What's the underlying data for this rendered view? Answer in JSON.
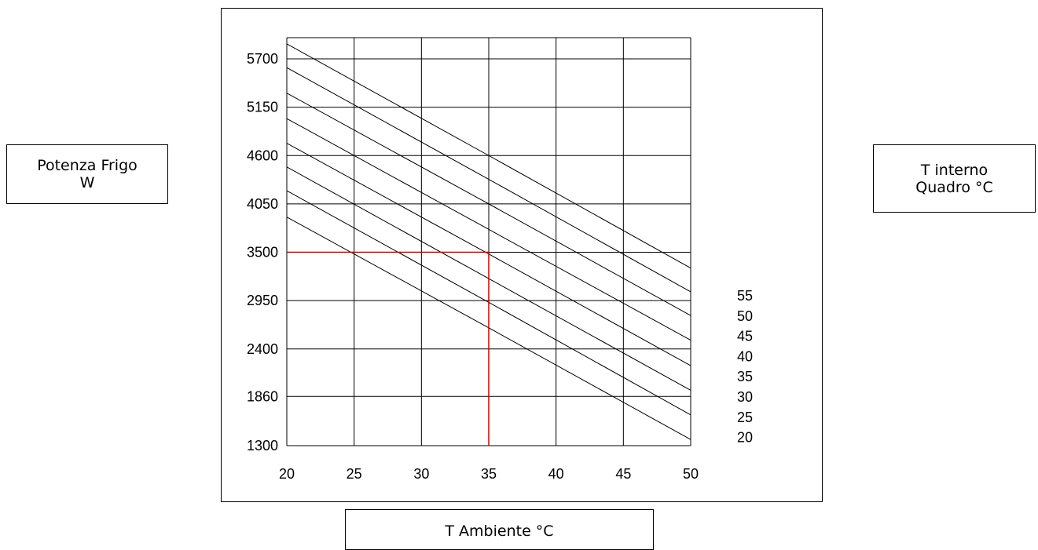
{
  "labels": {
    "ylabel_line1": "Potenza Frigo",
    "ylabel_line2": "W",
    "legend_title_line1": "T interno",
    "legend_title_line2": "Quadro °C",
    "xlabel": "T Ambiente °C"
  },
  "chart_data": {
    "type": "line",
    "title": "",
    "xlabel": "T Ambiente °C",
    "ylabel": "Potenza Frigo W",
    "legend_title": "T interno Quadro °C",
    "legend_placement": "right",
    "grid": true,
    "xlim": [
      20,
      50
    ],
    "ylim": [
      1300,
      5900
    ],
    "x_ticks": [
      20,
      25,
      30,
      35,
      40,
      45,
      50
    ],
    "y_ticks": [
      1300,
      1860,
      2400,
      2950,
      3500,
      4050,
      4600,
      5150,
      5700
    ],
    "line_color": "#000000",
    "series": [
      {
        "name": "55",
        "x": [
          20,
          35,
          50
        ],
        "y": [
          5870,
          4600,
          3320
        ]
      },
      {
        "name": "50",
        "x": [
          20,
          35,
          50
        ],
        "y": [
          5600,
          4330,
          3050
        ]
      },
      {
        "name": "45",
        "x": [
          20,
          35,
          50
        ],
        "y": [
          5310,
          4050,
          2780
        ]
      },
      {
        "name": "40",
        "x": [
          20,
          35,
          50
        ],
        "y": [
          5020,
          3760,
          2500
        ]
      },
      {
        "name": "35",
        "x": [
          20,
          35,
          50
        ],
        "y": [
          4740,
          3480,
          2210
        ]
      },
      {
        "name": "30",
        "x": [
          20,
          35,
          50
        ],
        "y": [
          4470,
          3200,
          1930
        ]
      },
      {
        "name": "25",
        "x": [
          20,
          35,
          50
        ],
        "y": [
          4200,
          2930,
          1650
        ]
      },
      {
        "name": "20",
        "x": [
          20,
          35,
          50
        ],
        "y": [
          3900,
          2640,
          1370
        ]
      }
    ],
    "annotation": {
      "type": "reference-lines",
      "x": 35,
      "y": 3500,
      "color": "#cc0000"
    }
  }
}
